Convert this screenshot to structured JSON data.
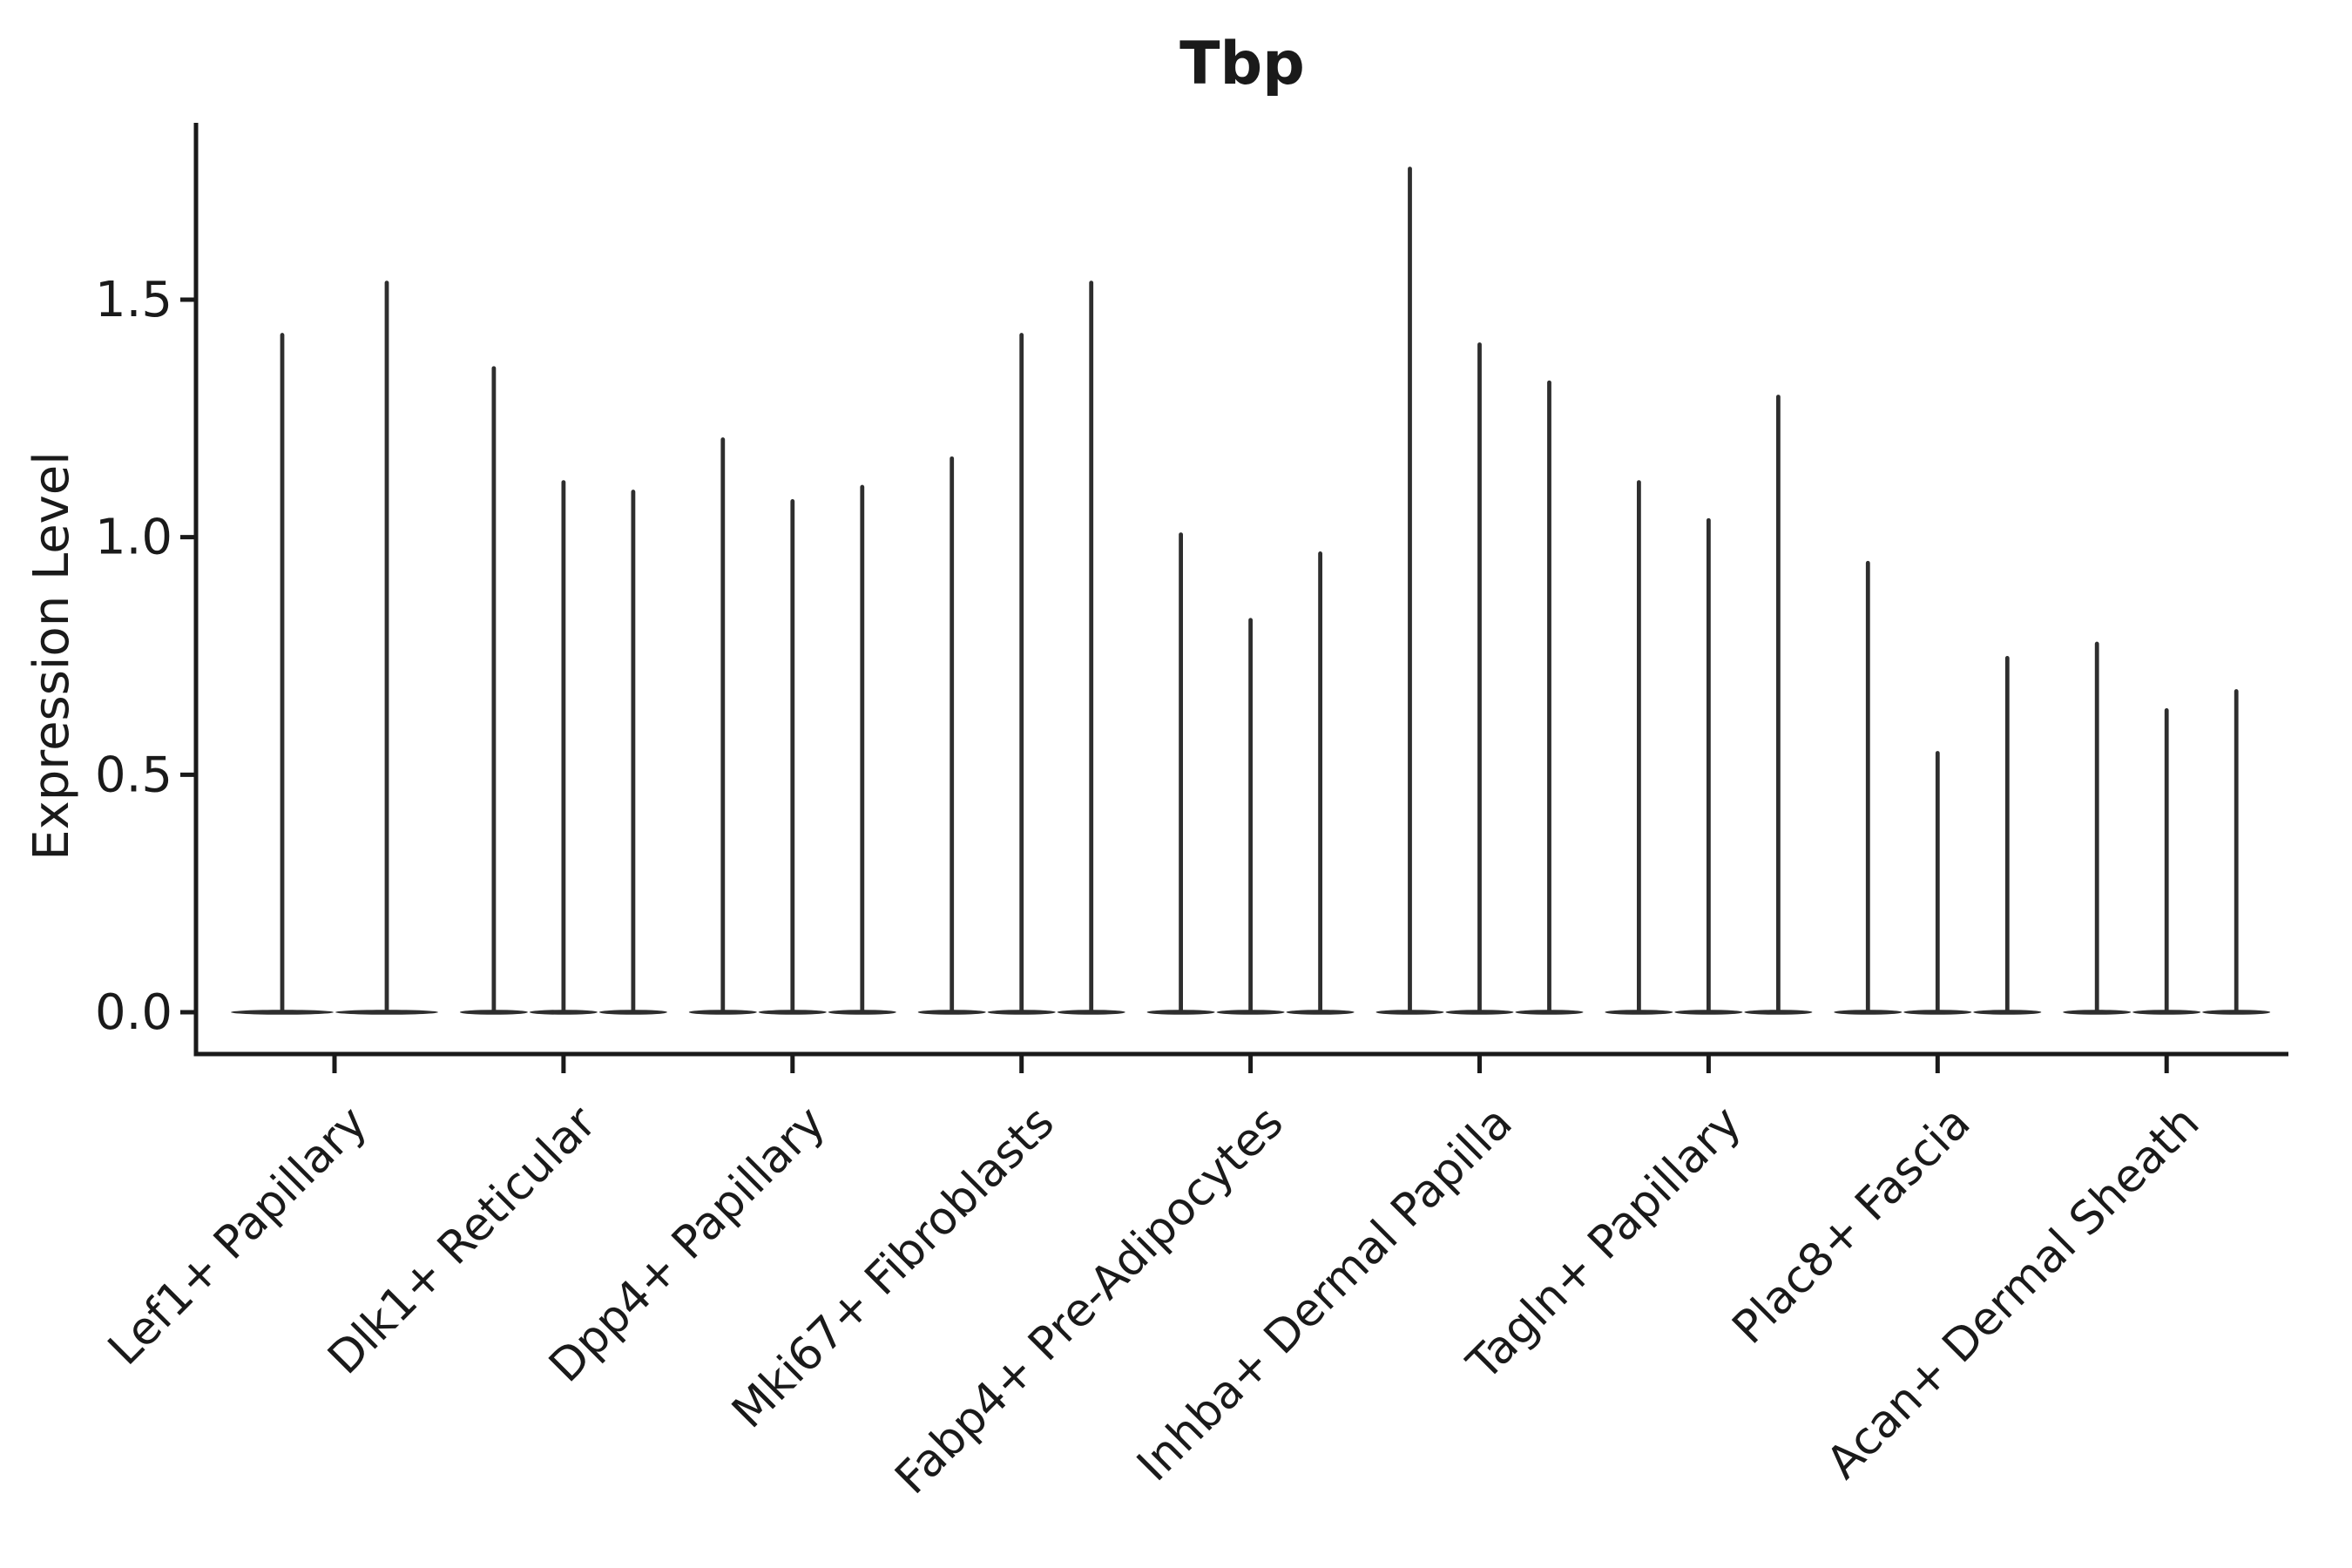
{
  "chart_data": {
    "type": "violin",
    "title": "Tbp",
    "ylabel": "Expression Level",
    "xlabel": "",
    "yticks": [
      0.0,
      0.5,
      1.0,
      1.5
    ],
    "ylim": [
      0,
      1.87
    ],
    "grid": false,
    "legend_position": "none",
    "categories": [
      "Lef1+ Papillary",
      "Dlk1+ Reticular",
      "Dpp4+ Papillary",
      "Mki67+ Fibroblasts",
      "Fabp4+ Pre-Adipocytes",
      "Inhba+ Dermal Papilla",
      "Tagln+ Papillary",
      "Plac8+ Fascia",
      "Acan+ Dermal Sheath"
    ],
    "groups": [
      {
        "label": "Lef1+ Papillary",
        "violin_max_values": [
          1.43,
          1.54
        ]
      },
      {
        "label": "Dlk1+ Reticular",
        "violin_max_values": [
          1.36,
          1.12,
          1.1
        ]
      },
      {
        "label": "Dpp4+ Papillary",
        "violin_max_values": [
          1.21,
          1.08,
          1.11
        ]
      },
      {
        "label": "Mki67+ Fibroblasts",
        "violin_max_values": [
          1.17,
          1.43,
          1.54
        ]
      },
      {
        "label": "Fabp4+ Pre-Adipocytes",
        "violin_max_values": [
          1.01,
          0.83,
          0.97
        ]
      },
      {
        "label": "Inhba+ Dermal Papilla",
        "violin_max_values": [
          1.78,
          1.41,
          1.33
        ]
      },
      {
        "label": "Tagln+ Papillary",
        "violin_max_values": [
          1.12,
          1.04,
          1.3
        ]
      },
      {
        "label": "Plac8+ Fascia",
        "violin_max_values": [
          0.95,
          0.55,
          0.75
        ]
      },
      {
        "label": "Acan+ Dermal Sheath",
        "violin_max_values": [
          0.78,
          0.64,
          0.68
        ]
      }
    ],
    "violin_baseline_value": 0.0,
    "colors": {
      "violin": "#2e2e2e",
      "axis": "#1a1a1a",
      "text": "#1a1a1a",
      "background": "#ffffff"
    }
  }
}
